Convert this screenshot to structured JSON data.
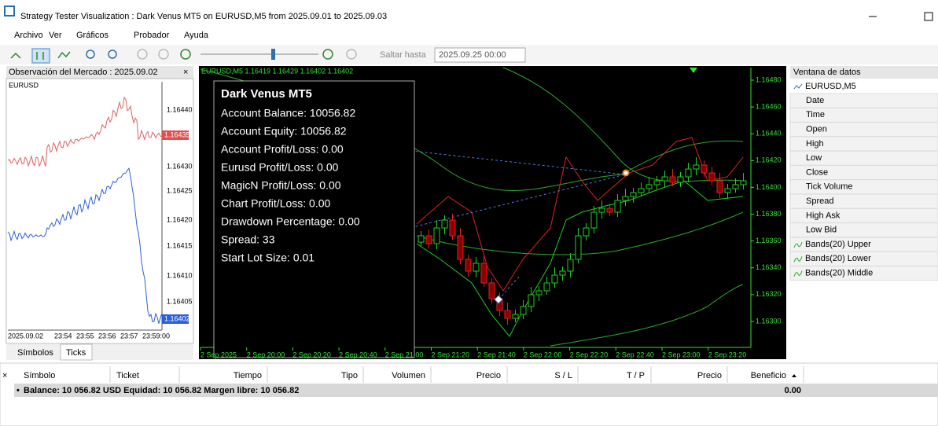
{
  "window": {
    "title": "Strategy Tester Visualization : Dark Venus MT5 on EURUSD,M5 from 2025.09.01 to 2025.09.03"
  },
  "menu": [
    "Archivo",
    "Ver",
    "Gráficos",
    "Probador",
    "Ayuda"
  ],
  "toolbar": {
    "jump_label": "Saltar hasta",
    "jump_date": "2025.09.25 00:00"
  },
  "market_watch": {
    "title": "Observación del Mercado : 2025.09.02",
    "symbol": "EURUSD",
    "price_labels": [
      "1.16440",
      "1.16430",
      "1.16425",
      "1.16420",
      "1.16415",
      "1.16410",
      "1.16405"
    ],
    "bid_label": "1.16435",
    "last_label": "1.16402",
    "time_labels": [
      "2025.09.02",
      "23:54",
      "23:55",
      "23:56",
      "23:57",
      "23:59:00"
    ],
    "tabs": [
      "Símbolos",
      "Ticks"
    ]
  },
  "chart": {
    "header": "EURUSD,M5  1.16419 1.16429 1.16402 1.16402",
    "panel": {
      "title": "Dark Venus MT5",
      "lines": [
        "Account Balance: 10056.82",
        "Account Equity: 10056.82",
        "Account Profit/Loss: 0.00",
        "Eurusd Profit/Loss: 0.00",
        "MagicN Profit/Loss: 0.00",
        "Chart Profit/Loss: 0.00",
        "Drawdown Percentage: 0.00",
        "Spread: 33",
        "Start Lot Size: 0.01"
      ]
    },
    "price_labels": [
      "1.16480",
      "1.16460",
      "1.16440",
      "1.16420",
      "1.16400",
      "1.16380",
      "1.16360",
      "1.16340",
      "1.16320",
      "1.16300"
    ],
    "time_labels": [
      "2 Sep 2025",
      "2 Sep 20:00",
      "2 Sep 20:20",
      "2 Sep 20:40",
      "2 Sep 21:00",
      "2 Sep 21:20",
      "2 Sep 21:40",
      "2 Sep 22:00",
      "2 Sep 22:20",
      "2 Sep 22:40",
      "2 Sep 23:00",
      "2 Sep 23:20"
    ]
  },
  "data_window": {
    "title": "Ventana de datos",
    "symbol": "EURUSD,M5",
    "rows": [
      "Date",
      "Time",
      "Open",
      "High",
      "Low",
      "Close",
      "Tick Volume",
      "Spread",
      "High Ask",
      "Low Bid"
    ],
    "indicators": [
      "Bands(20) Upper",
      "Bands(20) Lower",
      "Bands(20) Middle"
    ]
  },
  "trade": {
    "columns": [
      "Símbolo",
      "Ticket",
      "Tiempo",
      "Tipo",
      "Volumen",
      "Precio",
      "S / L",
      "T / P",
      "Precio",
      "Beneficio"
    ],
    "balance_row": "Balance: 10 056.82 USD  Equidad: 10 056.82  Margen libre: 10 056.82",
    "balance_profit": "0.00"
  }
}
